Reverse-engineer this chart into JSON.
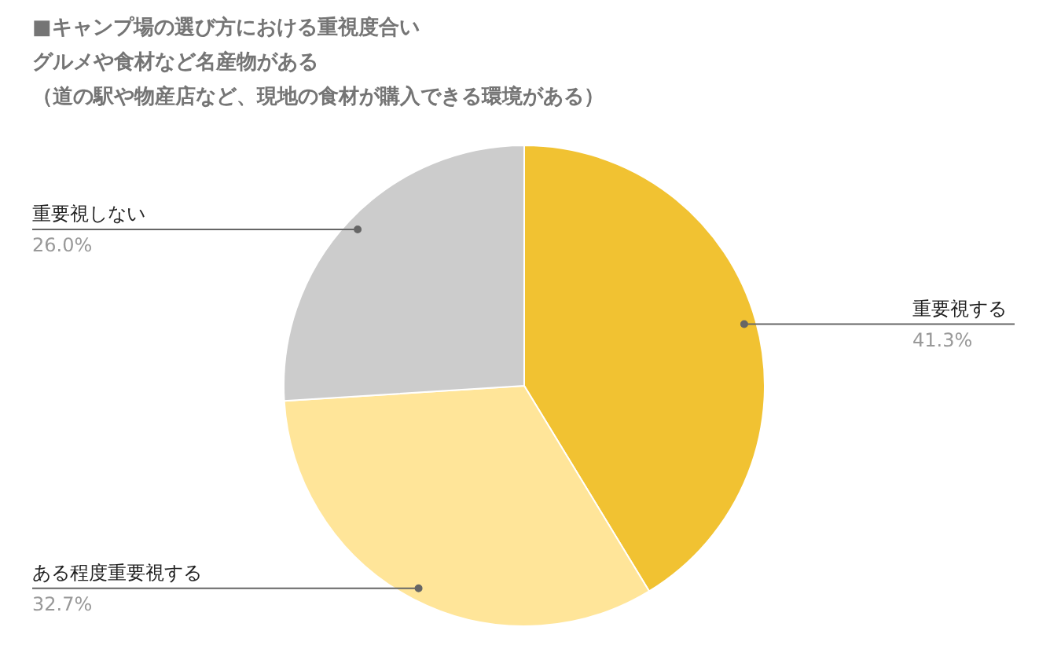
{
  "chart_data": {
    "type": "pie",
    "title": "■キャンプ場の選び方における重視度合い",
    "subtitle": "グルメや食材など名産物がある",
    "annotations": [
      "（道の駅や物産店など、現地の食材が購入できる環境がある）"
    ],
    "categories": [
      "重要視する",
      "ある程度重要視する",
      "重要視しない"
    ],
    "values": [
      41.3,
      32.7,
      26.0
    ],
    "colors": [
      "#f1c232",
      "#ffe599",
      "#cccccc"
    ],
    "value_labels": [
      "41.3%",
      "32.7%",
      "26.0%"
    ]
  }
}
